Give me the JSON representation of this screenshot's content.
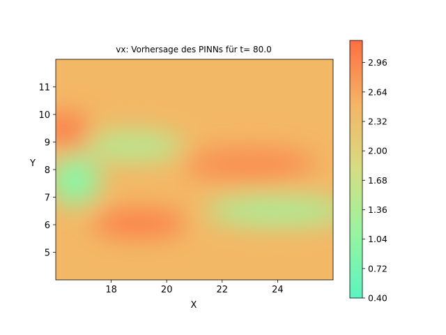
{
  "chart_data": {
    "type": "heatmap",
    "title": "vx: Vorhersage des PINNs für t= 80.0",
    "xlabel": "X",
    "ylabel": "Y",
    "xlim": [
      16.0,
      26.0
    ],
    "ylim": [
      4.0,
      12.0
    ],
    "x_ticks": [
      18,
      20,
      22,
      24
    ],
    "y_ticks": [
      5,
      6,
      7,
      8,
      9,
      10,
      11
    ],
    "colorbar": {
      "range": [
        0.4,
        3.2
      ],
      "ticks": [
        "0.40",
        "0.72",
        "1.04",
        "1.36",
        "1.68",
        "2.00",
        "2.32",
        "2.64",
        "2.96"
      ],
      "colormap": [
        "#5af5c0",
        "#96f59f",
        "#d6dd82",
        "#f5b564",
        "#fe6f42"
      ]
    },
    "field": {
      "background_value": 2.45,
      "features": [
        {
          "label": "high-left",
          "x": 16.3,
          "y": 9.5,
          "rx": 0.9,
          "ry": 0.55,
          "value": 3.05
        },
        {
          "label": "high-left-small",
          "x": 16.8,
          "y": 8.8,
          "rx": 0.4,
          "ry": 0.3,
          "value": 2.85
        },
        {
          "label": "high-center",
          "x": 23.0,
          "y": 8.2,
          "rx": 2.4,
          "ry": 0.6,
          "value": 2.9
        },
        {
          "label": "high-lower",
          "x": 19.0,
          "y": 6.05,
          "rx": 1.7,
          "ry": 0.5,
          "value": 3.05
        },
        {
          "label": "low-left",
          "x": 16.7,
          "y": 7.6,
          "rx": 0.9,
          "ry": 0.9,
          "value": 1.0
        },
        {
          "label": "low-top",
          "x": 18.8,
          "y": 8.85,
          "rx": 1.8,
          "ry": 0.55,
          "value": 1.45
        },
        {
          "label": "low-right",
          "x": 24.0,
          "y": 6.5,
          "rx": 2.6,
          "ry": 0.55,
          "value": 1.35
        }
      ]
    }
  }
}
